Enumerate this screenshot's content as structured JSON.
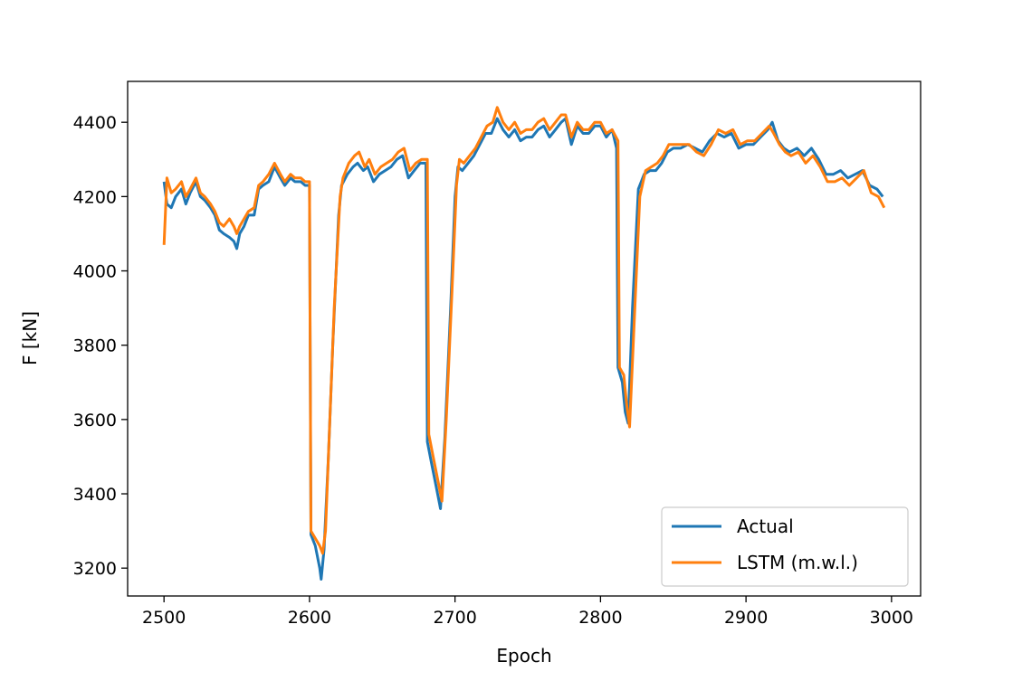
{
  "chart_data": {
    "type": "line",
    "title": "",
    "xlabel": "Epoch",
    "ylabel": "F [kN]",
    "xlim": [
      2475,
      3020
    ],
    "ylim": [
      3125,
      4510
    ],
    "xticks": [
      2500,
      2600,
      2700,
      2800,
      2900,
      3000
    ],
    "yticks": [
      3200,
      3400,
      3600,
      3800,
      4000,
      4200,
      4400
    ],
    "grid": false,
    "legend_position": "lower right",
    "series": [
      {
        "name": "Actual",
        "color": "#1f77b4",
        "x": [
          2500,
          2502,
          2505,
          2508,
          2512,
          2515,
          2518,
          2522,
          2525,
          2528,
          2532,
          2535,
          2538,
          2541,
          2545,
          2548,
          2550,
          2552,
          2555,
          2558,
          2562,
          2565,
          2568,
          2572,
          2576,
          2580,
          2583,
          2587,
          2590,
          2594,
          2597,
          2600,
          2601,
          2604,
          2607,
          2608,
          2610,
          2613,
          2616,
          2620,
          2622,
          2626,
          2630,
          2633,
          2637,
          2640,
          2644,
          2648,
          2652,
          2656,
          2660,
          2664,
          2668,
          2672,
          2676,
          2680,
          2681,
          2684,
          2687,
          2690,
          2693,
          2697,
          2700,
          2702,
          2705,
          2709,
          2713,
          2717,
          2721,
          2725,
          2729,
          2733,
          2737,
          2741,
          2745,
          2749,
          2753,
          2757,
          2761,
          2765,
          2769,
          2773,
          2776,
          2780,
          2784,
          2788,
          2792,
          2796,
          2800,
          2804,
          2808,
          2811,
          2812,
          2815,
          2817,
          2819,
          2822,
          2826,
          2830,
          2834,
          2838,
          2842,
          2846,
          2850,
          2855,
          2860,
          2865,
          2870,
          2875,
          2880,
          2885,
          2890,
          2895,
          2900,
          2905,
          2910,
          2915,
          2918,
          2922,
          2926,
          2930,
          2935,
          2940,
          2945,
          2950,
          2955,
          2960,
          2965,
          2970,
          2975,
          2980,
          2985,
          2990,
          2994
        ],
        "y": [
          4240,
          4180,
          4170,
          4200,
          4220,
          4180,
          4210,
          4240,
          4200,
          4190,
          4170,
          4150,
          4110,
          4100,
          4090,
          4080,
          4060,
          4100,
          4120,
          4150,
          4150,
          4220,
          4230,
          4240,
          4280,
          4250,
          4230,
          4250,
          4240,
          4240,
          4230,
          4230,
          3290,
          3260,
          3200,
          3170,
          3250,
          3500,
          3800,
          4150,
          4230,
          4260,
          4280,
          4290,
          4270,
          4280,
          4240,
          4260,
          4270,
          4280,
          4300,
          4310,
          4250,
          4270,
          4290,
          4290,
          3540,
          3480,
          3420,
          3360,
          3550,
          3900,
          4200,
          4280,
          4270,
          4290,
          4310,
          4340,
          4370,
          4370,
          4410,
          4380,
          4360,
          4380,
          4350,
          4360,
          4360,
          4380,
          4390,
          4360,
          4380,
          4400,
          4410,
          4340,
          4390,
          4370,
          4370,
          4390,
          4390,
          4360,
          4380,
          4330,
          3740,
          3700,
          3620,
          3590,
          3900,
          4220,
          4260,
          4270,
          4270,
          4290,
          4320,
          4330,
          4330,
          4340,
          4330,
          4320,
          4350,
          4370,
          4360,
          4370,
          4330,
          4340,
          4340,
          4360,
          4380,
          4400,
          4350,
          4330,
          4320,
          4330,
          4310,
          4330,
          4300,
          4260,
          4260,
          4270,
          4250,
          4260,
          4270,
          4230,
          4220,
          4200
        ]
      },
      {
        "name": "LSTM (m.w.l.)",
        "color": "#ff7f0e",
        "x": [
          2500,
          2502,
          2505,
          2508,
          2512,
          2515,
          2518,
          2522,
          2525,
          2528,
          2532,
          2535,
          2538,
          2541,
          2545,
          2548,
          2550,
          2552,
          2555,
          2558,
          2562,
          2565,
          2568,
          2572,
          2576,
          2580,
          2583,
          2587,
          2590,
          2594,
          2597,
          2600,
          2601,
          2604,
          2607,
          2609,
          2611,
          2614,
          2617,
          2621,
          2623,
          2627,
          2631,
          2634,
          2638,
          2641,
          2645,
          2649,
          2653,
          2657,
          2661,
          2665,
          2669,
          2673,
          2677,
          2681,
          2682,
          2685,
          2688,
          2691,
          2694,
          2698,
          2701,
          2703,
          2706,
          2710,
          2714,
          2718,
          2722,
          2726,
          2729,
          2733,
          2737,
          2741,
          2745,
          2749,
          2753,
          2757,
          2761,
          2765,
          2769,
          2773,
          2776,
          2780,
          2784,
          2788,
          2792,
          2796,
          2800,
          2804,
          2808,
          2812,
          2813,
          2816,
          2818,
          2820,
          2823,
          2827,
          2831,
          2835,
          2839,
          2843,
          2847,
          2851,
          2856,
          2861,
          2866,
          2871,
          2876,
          2881,
          2886,
          2891,
          2896,
          2901,
          2906,
          2911,
          2916,
          2919,
          2923,
          2927,
          2931,
          2936,
          2941,
          2946,
          2951,
          2956,
          2961,
          2966,
          2971,
          2976,
          2981,
          2986,
          2991,
          2995
        ],
        "y": [
          4070,
          4250,
          4210,
          4220,
          4240,
          4200,
          4220,
          4250,
          4210,
          4200,
          4180,
          4160,
          4130,
          4120,
          4140,
          4120,
          4100,
          4120,
          4140,
          4160,
          4170,
          4230,
          4240,
          4260,
          4290,
          4260,
          4240,
          4260,
          4250,
          4250,
          4240,
          4240,
          3300,
          3280,
          3260,
          3240,
          3300,
          3600,
          3900,
          4200,
          4250,
          4290,
          4310,
          4320,
          4280,
          4300,
          4260,
          4280,
          4290,
          4300,
          4320,
          4330,
          4270,
          4290,
          4300,
          4300,
          3560,
          3500,
          3440,
          3380,
          3600,
          3950,
          4230,
          4300,
          4290,
          4310,
          4330,
          4360,
          4390,
          4400,
          4440,
          4400,
          4380,
          4400,
          4370,
          4380,
          4380,
          4400,
          4410,
          4380,
          4400,
          4420,
          4420,
          4360,
          4400,
          4380,
          4380,
          4400,
          4400,
          4370,
          4380,
          4350,
          3740,
          3720,
          3640,
          3580,
          3850,
          4200,
          4270,
          4280,
          4290,
          4310,
          4340,
          4340,
          4340,
          4340,
          4320,
          4310,
          4340,
          4380,
          4370,
          4380,
          4340,
          4350,
          4350,
          4370,
          4390,
          4370,
          4340,
          4320,
          4310,
          4320,
          4290,
          4310,
          4280,
          4240,
          4240,
          4250,
          4230,
          4250,
          4270,
          4210,
          4200,
          4170
        ]
      }
    ]
  }
}
